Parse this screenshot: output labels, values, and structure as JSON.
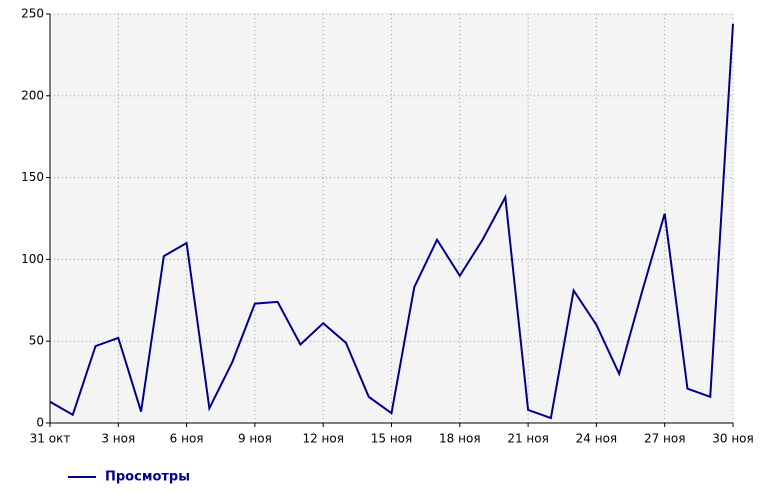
{
  "chart_data": {
    "type": "line",
    "categories": [
      "31 окт",
      null,
      null,
      "3 ноя",
      null,
      null,
      "6 ноя",
      null,
      null,
      "9 ноя",
      null,
      null,
      "12 ноя",
      null,
      null,
      "15 ноя",
      null,
      null,
      "18 ноя",
      null,
      null,
      "21 ноя",
      null,
      null,
      "24 ноя",
      null,
      null,
      "27 ноя",
      null,
      null,
      "30 ноя"
    ],
    "series": [
      {
        "name": "Просмотры",
        "color": "#00008b",
        "values": [
          13,
          5,
          47,
          52,
          7,
          102,
          110,
          9,
          37,
          73,
          74,
          48,
          61,
          49,
          16,
          6,
          83,
          112,
          90,
          112,
          138,
          8,
          3,
          81,
          60,
          30,
          80,
          128,
          21,
          16,
          244
        ]
      }
    ],
    "ylim": [
      0,
      250
    ],
    "yticks": [
      0,
      50,
      100,
      150,
      200,
      250
    ],
    "grid": true,
    "legend": "bottom-left"
  }
}
